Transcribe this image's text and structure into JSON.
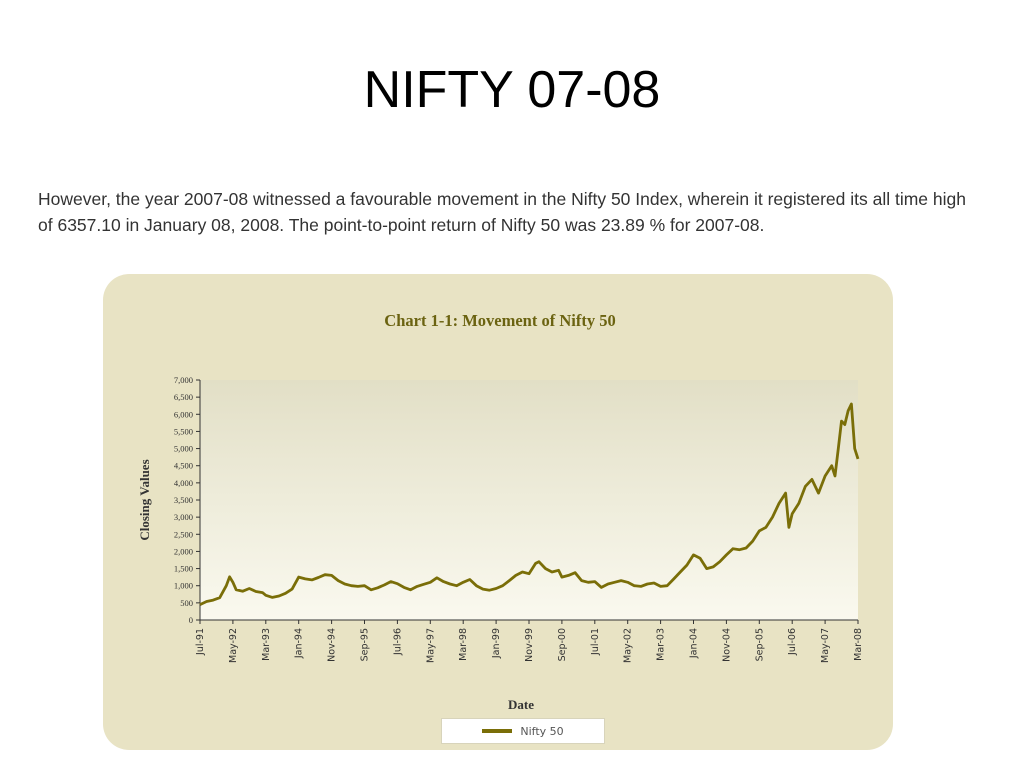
{
  "slide": {
    "title": "NIFTY 07-08",
    "intro": "However, the year 2007-08 witnessed a favourable movement in the Nifty 50 Index, wherein it registered its all time high of 6357.10 in January 08, 2008. The point-to-point return of Nifty 50 was 23.89 % for 2007-08."
  },
  "colors": {
    "panel_bg": "#e8e3c4",
    "plot_bg_top": "#e2dfc6",
    "plot_bg_bottom": "#faf9ef",
    "line": "#7a6e08",
    "title": "#6b6311",
    "axis": "#333333"
  },
  "chart_data": {
    "type": "line",
    "title": "Chart 1-1: Movement of Nifty 50",
    "xlabel": "Date",
    "ylabel": "Closing Values",
    "ylim": [
      0,
      7000
    ],
    "yticks": [
      0,
      500,
      1000,
      1500,
      2000,
      2500,
      3000,
      3500,
      4000,
      4500,
      5000,
      5500,
      6000,
      6500,
      7000
    ],
    "ytick_labels": [
      "0",
      "500",
      "1,000",
      "1,500",
      "2,000",
      "2,500",
      "3,000",
      "3,500",
      "4,000",
      "4,500",
      "5,000",
      "5,500",
      "6,000",
      "6,500",
      "7,000"
    ],
    "xtick_labels": [
      "Jul-91",
      "May-92",
      "Mar-93",
      "Jan-94",
      "Nov-94",
      "Sep-95",
      "Jul-96",
      "May-97",
      "Mar-98",
      "Jan-99",
      "Nov-99",
      "Sep-00",
      "Jul-01",
      "May-02",
      "Mar-03",
      "Jan-04",
      "Nov-04",
      "Sep-05",
      "Jul-06",
      "May-07",
      "Mar-08"
    ],
    "legend": "bottom",
    "grid": false,
    "series": [
      {
        "name": "Nifty 50",
        "values": [
          [
            "Jul-91",
            450
          ],
          [
            "Sep-91",
            540
          ],
          [
            "Nov-91",
            580
          ],
          [
            "Jan-92",
            650
          ],
          [
            "Mar-92",
            1000
          ],
          [
            "Apr-92",
            1260
          ],
          [
            "May-92",
            1100
          ],
          [
            "Jun-92",
            880
          ],
          [
            "Aug-92",
            840
          ],
          [
            "Oct-92",
            920
          ],
          [
            "Dec-92",
            830
          ],
          [
            "Feb-93",
            800
          ],
          [
            "Mar-93",
            720
          ],
          [
            "May-93",
            660
          ],
          [
            "Jul-93",
            700
          ],
          [
            "Sep-93",
            780
          ],
          [
            "Nov-93",
            900
          ],
          [
            "Jan-94",
            1250
          ],
          [
            "Mar-94",
            1200
          ],
          [
            "May-94",
            1170
          ],
          [
            "Jul-94",
            1240
          ],
          [
            "Sep-94",
            1320
          ],
          [
            "Nov-94",
            1300
          ],
          [
            "Jan-95",
            1150
          ],
          [
            "Mar-95",
            1050
          ],
          [
            "May-95",
            1000
          ],
          [
            "Jul-95",
            980
          ],
          [
            "Sep-95",
            1000
          ],
          [
            "Nov-95",
            880
          ],
          [
            "Jan-96",
            940
          ],
          [
            "Mar-96",
            1020
          ],
          [
            "May-96",
            1120
          ],
          [
            "Jul-96",
            1060
          ],
          [
            "Sep-96",
            950
          ],
          [
            "Nov-96",
            880
          ],
          [
            "Jan-97",
            980
          ],
          [
            "Mar-97",
            1040
          ],
          [
            "May-97",
            1100
          ],
          [
            "Jul-97",
            1230
          ],
          [
            "Sep-97",
            1120
          ],
          [
            "Nov-97",
            1050
          ],
          [
            "Jan-98",
            1000
          ],
          [
            "Mar-98",
            1100
          ],
          [
            "May-98",
            1180
          ],
          [
            "Jul-98",
            1000
          ],
          [
            "Sep-98",
            900
          ],
          [
            "Nov-98",
            870
          ],
          [
            "Jan-99",
            920
          ],
          [
            "Mar-99",
            1000
          ],
          [
            "May-99",
            1150
          ],
          [
            "Jul-99",
            1300
          ],
          [
            "Sep-99",
            1400
          ],
          [
            "Nov-99",
            1350
          ],
          [
            "Jan-00",
            1650
          ],
          [
            "Feb-00",
            1700
          ],
          [
            "Apr-00",
            1500
          ],
          [
            "Jun-00",
            1400
          ],
          [
            "Aug-00",
            1450
          ],
          [
            "Sep-00",
            1250
          ],
          [
            "Nov-00",
            1300
          ],
          [
            "Jan-01",
            1380
          ],
          [
            "Mar-01",
            1150
          ],
          [
            "May-01",
            1100
          ],
          [
            "Jul-01",
            1120
          ],
          [
            "Sep-01",
            950
          ],
          [
            "Nov-01",
            1050
          ],
          [
            "Jan-02",
            1100
          ],
          [
            "Mar-02",
            1150
          ],
          [
            "May-02",
            1100
          ],
          [
            "Jul-02",
            1000
          ],
          [
            "Sep-02",
            980
          ],
          [
            "Nov-02",
            1050
          ],
          [
            "Jan-03",
            1080
          ],
          [
            "Mar-03",
            980
          ],
          [
            "May-03",
            1000
          ],
          [
            "Jul-03",
            1200
          ],
          [
            "Sep-03",
            1400
          ],
          [
            "Nov-03",
            1600
          ],
          [
            "Jan-04",
            1900
          ],
          [
            "Mar-04",
            1800
          ],
          [
            "May-04",
            1500
          ],
          [
            "Jul-04",
            1550
          ],
          [
            "Sep-04",
            1700
          ],
          [
            "Nov-04",
            1900
          ],
          [
            "Jan-05",
            2080
          ],
          [
            "Mar-05",
            2050
          ],
          [
            "May-05",
            2100
          ],
          [
            "Jul-05",
            2300
          ],
          [
            "Sep-05",
            2600
          ],
          [
            "Nov-05",
            2700
          ],
          [
            "Jan-06",
            3000
          ],
          [
            "Mar-06",
            3400
          ],
          [
            "May-06",
            3700
          ],
          [
            "Jun-06",
            2700
          ],
          [
            "Jul-06",
            3100
          ],
          [
            "Sep-06",
            3400
          ],
          [
            "Nov-06",
            3900
          ],
          [
            "Jan-07",
            4100
          ],
          [
            "Mar-07",
            3700
          ],
          [
            "May-07",
            4200
          ],
          [
            "Jul-07",
            4500
          ],
          [
            "Aug-07",
            4200
          ],
          [
            "Sep-07",
            5000
          ],
          [
            "Oct-07",
            5800
          ],
          [
            "Nov-07",
            5700
          ],
          [
            "Dec-07",
            6100
          ],
          [
            "Jan-08",
            6300
          ],
          [
            "Feb-08",
            5000
          ],
          [
            "Mar-08",
            4700
          ]
        ]
      }
    ]
  }
}
